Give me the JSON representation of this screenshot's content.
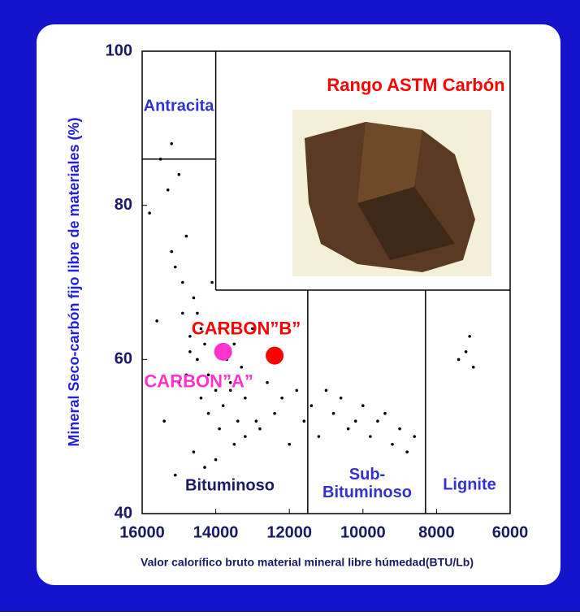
{
  "chart_data": {
    "type": "scatter",
    "title": "Rango ASTM Carbón",
    "x_label": "Valor calorífico bruto material mineral libre húmedad(BTU/Lb)",
    "y_label": "Mineral Seco-carbón fijo libre de materiales (%)",
    "xlim": [
      16000,
      6000
    ],
    "ylim": [
      40,
      100
    ],
    "xticks": [
      16000,
      14000,
      12000,
      10000,
      8000,
      6000
    ],
    "yticks": [
      40,
      60,
      80,
      100
    ],
    "series": [
      {
        "color": "#000000",
        "x": [
          15800,
          15600,
          15500,
          15300,
          15200,
          15100,
          15000,
          14900,
          14800,
          14700,
          14600,
          14500,
          14500,
          14400,
          14300,
          14200,
          14100,
          14000,
          13900,
          13800,
          13700,
          13600,
          13500,
          13400,
          13300,
          13200,
          13000,
          12800,
          12600,
          12400,
          12200,
          12000,
          11800,
          11600,
          11400,
          11200,
          11000,
          10800,
          10600,
          10400,
          10200,
          10000,
          9800,
          9600,
          9400,
          9200,
          9000,
          8800,
          8600,
          7400,
          7200,
          7100,
          7000,
          15400,
          15200,
          14900,
          14700,
          15000,
          14800,
          14400,
          14200,
          13900,
          13600,
          13200,
          12900,
          14600,
          14300,
          15100,
          14000,
          13500
        ],
        "y": [
          79,
          65,
          86,
          82,
          88,
          72,
          84,
          70,
          76,
          63,
          68,
          60,
          66,
          64,
          62,
          58,
          70,
          56,
          64,
          54,
          60,
          57,
          62,
          52,
          59,
          55,
          64,
          51,
          57,
          53,
          55,
          49,
          56,
          52,
          54,
          50,
          56,
          53,
          55,
          51,
          52,
          54,
          50,
          52,
          53,
          49,
          51,
          48,
          50,
          60,
          61,
          63,
          59,
          52,
          74,
          66,
          61,
          57,
          58,
          55,
          53,
          51,
          56,
          50,
          52,
          48,
          46,
          45,
          47,
          49
        ]
      }
    ],
    "points": [
      {
        "label": "CARBON”A”",
        "x": 13800,
        "y": 61,
        "color": "#ff33cc"
      },
      {
        "label": "CARBON”B”",
        "x": 12400,
        "y": 60.5,
        "color": "#ff0000"
      }
    ],
    "boundaries": [
      {
        "x": [
          16000,
          14000
        ],
        "y": [
          86,
          86
        ]
      },
      {
        "x": [
          14000,
          14000
        ],
        "y": [
          100,
          69
        ]
      },
      {
        "x": [
          14000,
          6000
        ],
        "y": [
          69,
          69
        ]
      },
      {
        "x": [
          11500,
          11500
        ],
        "y": [
          69,
          40
        ]
      },
      {
        "x": [
          8300,
          8300
        ],
        "y": [
          69,
          40
        ]
      }
    ],
    "regions": [
      {
        "label": "Antracita",
        "color": "#3333cc"
      },
      {
        "label": "Bituminoso",
        "color": "#1a1a66"
      },
      {
        "label": [
          "Sub-",
          "Bituminoso"
        ],
        "color": "#3333cc"
      },
      {
        "label": "Lignite",
        "color": "#3333cc"
      }
    ]
  }
}
